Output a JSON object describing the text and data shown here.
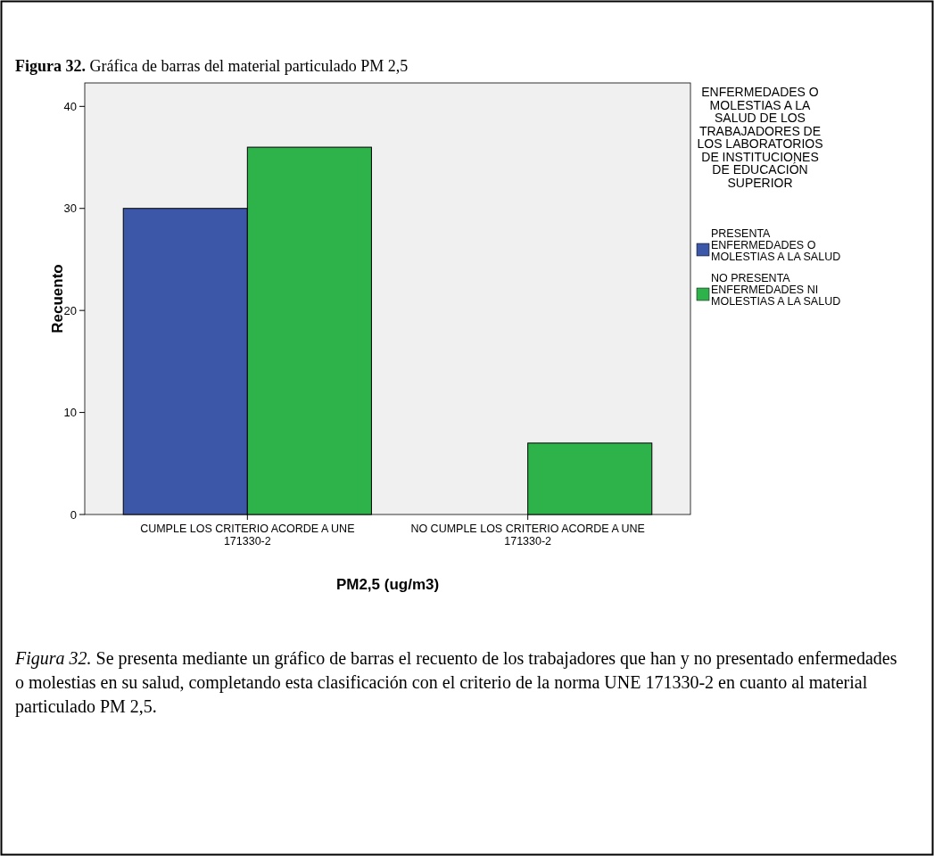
{
  "chart_data": {
    "type": "bar",
    "title": "Figura 32. Gráfica de barras del material particulado PM 2,5",
    "xlabel": "PM2,5 (ug/m3)",
    "ylabel": "Recuento",
    "legend_title": "ENFERMEDADES O MOLESTIAS A LA SALUD DE LOS TRABAJADORES DE LOS LABORATORIOS DE INSTITUCIONES DE EDUCACIÓN SUPERIOR",
    "categories": [
      "CUMPLE LOS CRITERIO ACORDE A UNE 171330-2",
      "NO CUMPLE LOS CRITERIO ACORDE A UNE 171330-2"
    ],
    "series": [
      {
        "name": "PRESENTA ENFERMEDADES O MOLESTIAS A LA SALUD",
        "color": "#3c56a8",
        "values": [
          30,
          0
        ]
      },
      {
        "name": "NO PRESENTA ENFERMEDADES NI MOLESTIAS A LA SALUD",
        "color": "#2db34a",
        "values": [
          36,
          7
        ]
      }
    ],
    "ylim": [
      0,
      42.3
    ],
    "yticks": [
      0,
      10,
      20,
      30,
      40
    ],
    "grid": false,
    "legend": "right",
    "annotations": [
      "Figura 32.  Se presenta mediante un gráfico de barras el recuento de los trabajadores que han y no presentado enfermedades o molestias en su salud, completando esta clasificación con el criterio de la norma UNE 171330-2 en cuanto al material particulado PM 2,5."
    ]
  }
}
